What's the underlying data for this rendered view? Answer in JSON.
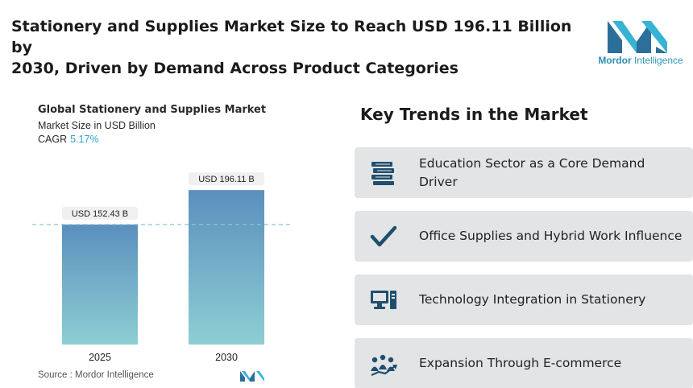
{
  "headline": {
    "line1": "Stationery and Supplies Market Size to Reach USD 196.11 Billion by",
    "line2": "2030, Driven by Demand Across Product Categories"
  },
  "logo": {
    "word1": "Mordor",
    "word2": " Intelligence"
  },
  "chart": {
    "title": "Global Stationery and Supplies Market",
    "subtitle": "Market Size in USD Billion",
    "cagr_label": "CAGR",
    "cagr_value": "5.17%"
  },
  "chart_data": {
    "type": "bar",
    "title": "Global Stationery and Supplies Market",
    "subtitle": "Market Size in USD Billion",
    "categories": [
      "2025",
      "2030"
    ],
    "values": [
      152.43,
      196.11
    ],
    "data_labels": [
      "USD 152.43 B",
      "USD 196.11 B"
    ],
    "ylim": [
      0,
      230
    ],
    "reference_line": 152.43,
    "grid": false,
    "colors": {
      "bar_top": "#5b8fbe",
      "bar_bottom": "#8dcfd3",
      "label_bg": "#f0f0f0",
      "dashed_line": "#8ec6d4"
    }
  },
  "source": {
    "label": "Source :",
    "name": "Mordor Intelligence"
  },
  "trends": {
    "title": "Key Trends in the Market",
    "items": [
      {
        "label": "Education Sector as a Core Demand Driver",
        "icon": "books-icon"
      },
      {
        "label": "Office Supplies and Hybrid Work Influence",
        "icon": "checkmark-icon"
      },
      {
        "label": "Technology Integration in Stationery",
        "icon": "computer-icon"
      },
      {
        "label": "Expansion Through E-commerce",
        "icon": "growth-people-icon"
      }
    ]
  },
  "colors": {
    "brand": "#2d97b8",
    "icon": "#1f4f6e",
    "card_bg": "#e3e4e6"
  }
}
